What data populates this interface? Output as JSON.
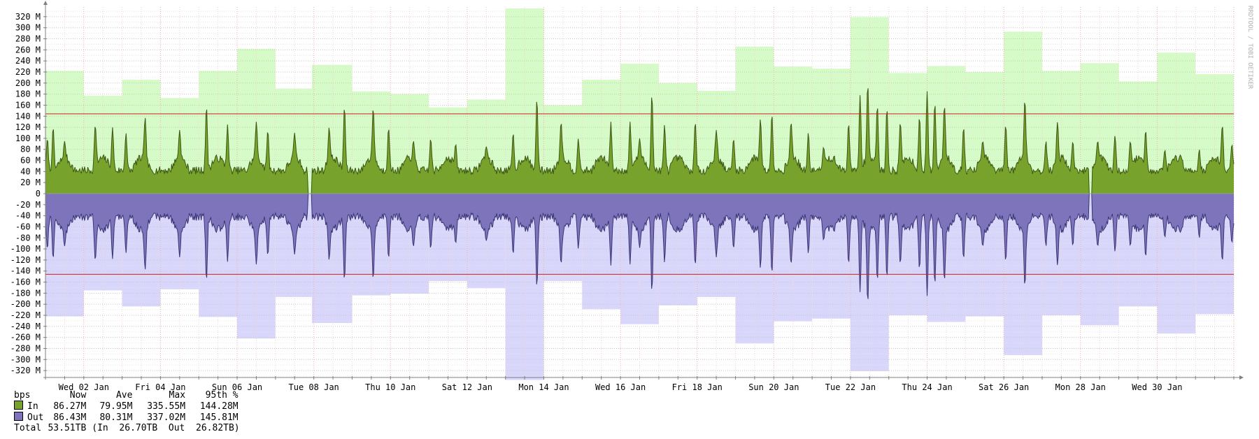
{
  "chart_data": {
    "type": "area",
    "y_unit": "bps",
    "ylim": [
      -340,
      340
    ],
    "yticks": [
      320,
      300,
      280,
      260,
      240,
      220,
      200,
      180,
      160,
      140,
      120,
      100,
      80,
      60,
      40,
      20,
      0,
      -20,
      -40,
      -60,
      -80,
      -100,
      -120,
      -140,
      -160,
      -180,
      -200,
      -220,
      -240,
      -260,
      -280,
      -300,
      -320
    ],
    "ytick_labels": [
      "320 M",
      "300 M",
      "280 M",
      "260 M",
      "240 M",
      "220 M",
      "200 M",
      "180 M",
      "160 M",
      "140 M",
      "120 M",
      "100 M",
      "80 M",
      "60 M",
      "40 M",
      "20 M",
      "0",
      "-20 M",
      "-40 M",
      "-60 M",
      "-80 M",
      "-100 M",
      "-120 M",
      "-140 M",
      "-160 M",
      "-180 M",
      "-200 M",
      "-220 M",
      "-240 M",
      "-260 M",
      "-280 M",
      "-300 M",
      "-320 M"
    ],
    "xlim_days": [
      1.0,
      32.0
    ],
    "xticks": [
      {
        "day": 2.0,
        "label": "Wed 02 Jan"
      },
      {
        "day": 4.0,
        "label": "Fri 04 Jan"
      },
      {
        "day": 6.0,
        "label": "Sun 06 Jan"
      },
      {
        "day": 8.0,
        "label": "Tue 08 Jan"
      },
      {
        "day": 10.0,
        "label": "Thu 10 Jan"
      },
      {
        "day": 12.0,
        "label": "Sat 12 Jan"
      },
      {
        "day": 14.0,
        "label": "Mon 14 Jan"
      },
      {
        "day": 16.0,
        "label": "Wed 16 Jan"
      },
      {
        "day": 18.0,
        "label": "Fri 18 Jan"
      },
      {
        "day": 20.0,
        "label": "Sun 20 Jan"
      },
      {
        "day": 22.0,
        "label": "Tue 22 Jan"
      },
      {
        "day": 24.0,
        "label": "Thu 24 Jan"
      },
      {
        "day": 26.0,
        "label": "Sat 26 Jan"
      },
      {
        "day": 28.0,
        "label": "Mon 28 Jan"
      },
      {
        "day": 30.0,
        "label": "Wed 30 Jan"
      }
    ],
    "daily_max": [
      {
        "start": 1.0,
        "end": 2.0,
        "in": 222,
        "out": 222
      },
      {
        "start": 2.0,
        "end": 3.0,
        "in": 177,
        "out": 175
      },
      {
        "start": 3.0,
        "end": 4.0,
        "in": 206,
        "out": 204
      },
      {
        "start": 4.0,
        "end": 5.0,
        "in": 173,
        "out": 173
      },
      {
        "start": 5.0,
        "end": 6.0,
        "in": 222,
        "out": 223
      },
      {
        "start": 6.0,
        "end": 7.0,
        "in": 262,
        "out": 262
      },
      {
        "start": 7.0,
        "end": 7.95,
        "in": 190,
        "out": 187
      },
      {
        "start": 7.95,
        "end": 9.0,
        "in": 233,
        "out": 234
      },
      {
        "start": 9.0,
        "end": 10.0,
        "in": 185,
        "out": 184
      },
      {
        "start": 10.0,
        "end": 11.0,
        "in": 180,
        "out": 181
      },
      {
        "start": 11.0,
        "end": 12.0,
        "in": 156,
        "out": 158
      },
      {
        "start": 12.0,
        "end": 13.0,
        "in": 170,
        "out": 171
      },
      {
        "start": 13.0,
        "end": 14.0,
        "in": 335,
        "out": 337
      },
      {
        "start": 14.0,
        "end": 15.0,
        "in": 160,
        "out": 158
      },
      {
        "start": 15.0,
        "end": 16.0,
        "in": 206,
        "out": 209
      },
      {
        "start": 16.0,
        "end": 17.0,
        "in": 235,
        "out": 236
      },
      {
        "start": 17.0,
        "end": 18.0,
        "in": 200,
        "out": 202
      },
      {
        "start": 18.0,
        "end": 19.0,
        "in": 186,
        "out": 187
      },
      {
        "start": 19.0,
        "end": 20.0,
        "in": 266,
        "out": 271
      },
      {
        "start": 20.0,
        "end": 21.0,
        "in": 230,
        "out": 231
      },
      {
        "start": 21.0,
        "end": 22.0,
        "in": 226,
        "out": 226
      },
      {
        "start": 22.0,
        "end": 23.0,
        "in": 319,
        "out": 321
      },
      {
        "start": 23.0,
        "end": 24.0,
        "in": 218,
        "out": 220
      },
      {
        "start": 24.0,
        "end": 25.0,
        "in": 231,
        "out": 232
      },
      {
        "start": 25.0,
        "end": 26.0,
        "in": 220,
        "out": 222
      },
      {
        "start": 26.0,
        "end": 27.0,
        "in": 293,
        "out": 292
      },
      {
        "start": 27.0,
        "end": 28.0,
        "in": 222,
        "out": 220
      },
      {
        "start": 28.0,
        "end": 29.0,
        "in": 236,
        "out": 238
      },
      {
        "start": 29.0,
        "end": 30.0,
        "in": 203,
        "out": 204
      },
      {
        "start": 30.0,
        "end": 31.0,
        "in": 255,
        "out": 253
      },
      {
        "start": 31.0,
        "end": 32.0,
        "in": 216,
        "out": 218
      }
    ],
    "gaps": [
      [
        7.85,
        7.95
      ],
      [
        28.22,
        28.3
      ]
    ],
    "series": [
      {
        "name": "In",
        "direction": "up",
        "color": "#77a22c",
        "edge_color": "#3d5712",
        "max_fill": "#d5fbc6"
      },
      {
        "name": "Out",
        "direction": "down",
        "color": "#7d74bb",
        "edge_color": "#3b3474",
        "max_fill": "#d8d7fb"
      }
    ],
    "percentile95": {
      "in": 144.28,
      "out": 145.81,
      "color": "#cc2020"
    },
    "peaks": [
      {
        "day": 1.05,
        "in": 100,
        "out": 100
      },
      {
        "day": 1.2,
        "in": 120,
        "out": 118
      },
      {
        "day": 1.5,
        "in": 95,
        "out": 95
      },
      {
        "day": 2.3,
        "in": 125,
        "out": 122
      },
      {
        "day": 2.75,
        "in": 120,
        "out": 118
      },
      {
        "day": 3.1,
        "in": 110,
        "out": 108
      },
      {
        "day": 3.6,
        "in": 138,
        "out": 138
      },
      {
        "day": 4.5,
        "in": 115,
        "out": 115
      },
      {
        "day": 5.2,
        "in": 158,
        "out": 158
      },
      {
        "day": 5.75,
        "in": 125,
        "out": 123
      },
      {
        "day": 6.5,
        "in": 130,
        "out": 128
      },
      {
        "day": 6.8,
        "in": 115,
        "out": 113
      },
      {
        "day": 7.5,
        "in": 110,
        "out": 110
      },
      {
        "day": 8.4,
        "in": 120,
        "out": 120
      },
      {
        "day": 8.8,
        "in": 158,
        "out": 158
      },
      {
        "day": 9.55,
        "in": 155,
        "out": 155
      },
      {
        "day": 9.95,
        "in": 120,
        "out": 118
      },
      {
        "day": 10.6,
        "in": 95,
        "out": 95
      },
      {
        "day": 11.05,
        "in": 100,
        "out": 100
      },
      {
        "day": 11.7,
        "in": 90,
        "out": 90
      },
      {
        "day": 12.5,
        "in": 85,
        "out": 85
      },
      {
        "day": 13.2,
        "in": 110,
        "out": 110
      },
      {
        "day": 13.82,
        "in": 172,
        "out": 170
      },
      {
        "day": 14.45,
        "in": 130,
        "out": 128
      },
      {
        "day": 14.9,
        "in": 100,
        "out": 100
      },
      {
        "day": 15.75,
        "in": 130,
        "out": 130
      },
      {
        "day": 16.25,
        "in": 130,
        "out": 128
      },
      {
        "day": 16.5,
        "in": 100,
        "out": 98
      },
      {
        "day": 16.82,
        "in": 180,
        "out": 178
      },
      {
        "day": 17.15,
        "in": 125,
        "out": 125
      },
      {
        "day": 17.95,
        "in": 130,
        "out": 130
      },
      {
        "day": 18.5,
        "in": 115,
        "out": 115
      },
      {
        "day": 18.95,
        "in": 100,
        "out": 100
      },
      {
        "day": 19.65,
        "in": 135,
        "out": 135
      },
      {
        "day": 19.95,
        "in": 145,
        "out": 145
      },
      {
        "day": 20.45,
        "in": 130,
        "out": 128
      },
      {
        "day": 20.9,
        "in": 110,
        "out": 108
      },
      {
        "day": 21.3,
        "in": 85,
        "out": 85
      },
      {
        "day": 21.95,
        "in": 128,
        "out": 128
      },
      {
        "day": 22.25,
        "in": 178,
        "out": 178
      },
      {
        "day": 22.45,
        "in": 198,
        "out": 198
      },
      {
        "day": 22.7,
        "in": 160,
        "out": 158
      },
      {
        "day": 22.95,
        "in": 155,
        "out": 153
      },
      {
        "day": 23.3,
        "in": 130,
        "out": 128
      },
      {
        "day": 23.8,
        "in": 140,
        "out": 138
      },
      {
        "day": 24.0,
        "in": 185,
        "out": 185
      },
      {
        "day": 24.2,
        "in": 165,
        "out": 165
      },
      {
        "day": 24.45,
        "in": 160,
        "out": 158
      },
      {
        "day": 24.95,
        "in": 120,
        "out": 118
      },
      {
        "day": 25.45,
        "in": 95,
        "out": 95
      },
      {
        "day": 26.05,
        "in": 125,
        "out": 123
      },
      {
        "day": 26.55,
        "in": 170,
        "out": 168
      },
      {
        "day": 27.1,
        "in": 95,
        "out": 95
      },
      {
        "day": 27.4,
        "in": 130,
        "out": 130
      },
      {
        "day": 27.8,
        "in": 95,
        "out": 95
      },
      {
        "day": 28.45,
        "in": 95,
        "out": 95
      },
      {
        "day": 28.9,
        "in": 105,
        "out": 105
      },
      {
        "day": 29.3,
        "in": 95,
        "out": 95
      },
      {
        "day": 29.7,
        "in": 115,
        "out": 115
      },
      {
        "day": 30.2,
        "in": 80,
        "out": 80
      },
      {
        "day": 30.6,
        "in": 70,
        "out": 70
      },
      {
        "day": 31.1,
        "in": 80,
        "out": 80
      },
      {
        "day": 31.7,
        "in": 125,
        "out": 123
      },
      {
        "day": 31.95,
        "in": 90,
        "out": 90
      }
    ]
  },
  "watermark": "RRDTOOL / TOBI OETIKER",
  "legend": {
    "unit_label": "bps",
    "headers": [
      "Now",
      "Ave",
      "Max",
      "95th %"
    ],
    "rows": [
      {
        "name": "In",
        "color": "#77a22c",
        "now": "86.27M",
        "ave": "79.95M",
        "max": "335.55M",
        "p95": "144.28M"
      },
      {
        "name": "Out",
        "color": "#7d74bb",
        "now": "86.43M",
        "ave": "80.31M",
        "max": "337.02M",
        "p95": "145.81M"
      }
    ],
    "total": {
      "label": "Total",
      "value": "53.51TB",
      "in_label": "(In",
      "in_value": "26.70TB",
      "out_label": "Out",
      "out_value": "26.82TB)"
    }
  }
}
